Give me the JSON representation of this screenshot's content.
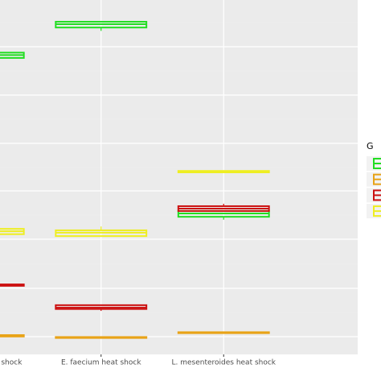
{
  "chart_data": {
    "type": "box",
    "categories": [
      "C. divergens heat shock",
      "E. faecium heat shock",
      "L. mesenteroides heat shock"
    ],
    "ylim": [
      -0.37,
      6.97
    ],
    "legend_title": "G",
    "series": [
      {
        "color": "#22dd22",
        "low": [
          5.77,
          6.33,
          2.42
        ],
        "q1": [
          5.77,
          6.4,
          2.48
        ],
        "median": [
          5.83,
          6.47,
          2.55
        ],
        "q3": [
          5.88,
          6.52,
          2.6
        ],
        "high": [
          6.0,
          6.53,
          2.6
        ]
      },
      {
        "color": "#e8a317",
        "low": [
          0,
          -0.03,
          0.07
        ],
        "q1": [
          0,
          -0.03,
          0.07
        ],
        "median": [
          0.02,
          -0.02,
          0.08
        ],
        "q3": [
          0.03,
          -0.01,
          0.09
        ],
        "high": [
          0.03,
          -0.01,
          0.09
        ]
      },
      {
        "color": "#cc1111",
        "low": [
          1.05,
          0.53,
          2.6
        ],
        "q1": [
          1.05,
          0.57,
          2.6
        ],
        "median": [
          1.07,
          0.6,
          2.65
        ],
        "q3": [
          1.08,
          0.65,
          2.7
        ],
        "high": [
          1.08,
          0.65,
          2.75
        ]
      },
      {
        "color": "#eeee22",
        "low": [
          2.03,
          2.08,
          3.4
        ],
        "q1": [
          2.12,
          2.08,
          3.4
        ],
        "median": [
          2.18,
          2.15,
          3.42
        ],
        "q3": [
          2.23,
          2.2,
          3.43
        ],
        "high": [
          2.25,
          2.28,
          3.43
        ]
      }
    ]
  }
}
